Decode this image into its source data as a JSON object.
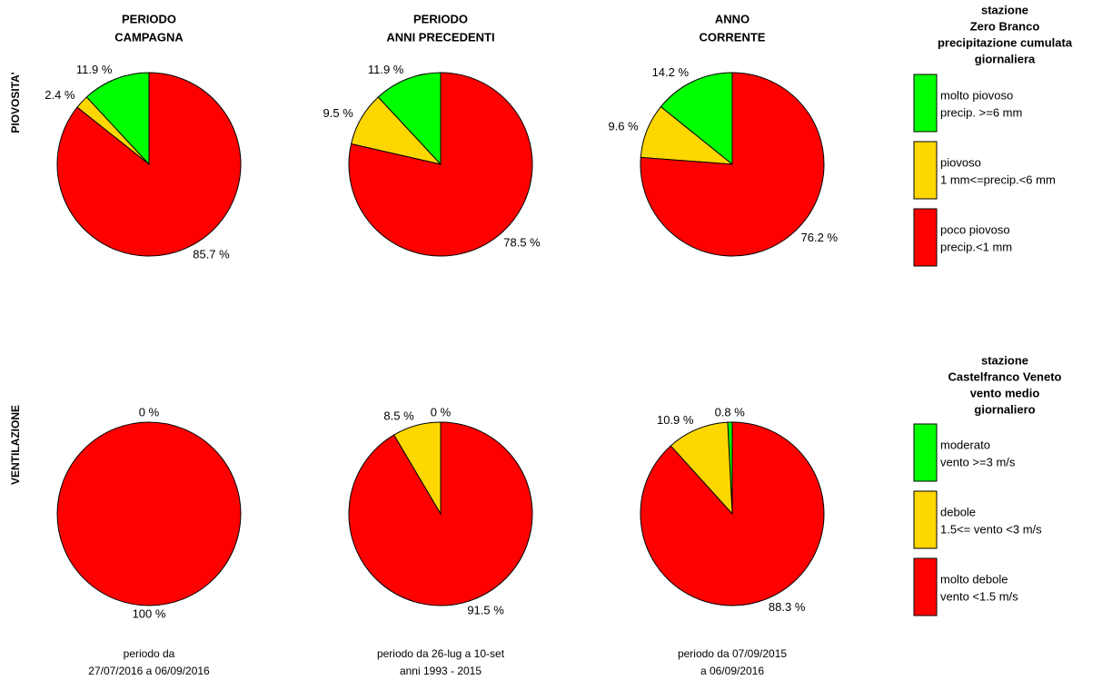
{
  "chart_data": [
    {
      "type": "pie",
      "values": [
        11.9,
        2.4,
        85.7
      ],
      "value_labels": [
        "11.9 %",
        "2.4 %",
        "85.7 %"
      ],
      "colors": [
        "#00ff00",
        "#ffd700",
        "#ff0000"
      ]
    },
    {
      "type": "pie",
      "values": [
        11.9,
        9.5,
        78.5
      ],
      "value_labels": [
        "11.9 %",
        "9.5 %",
        "78.5 %"
      ],
      "colors": [
        "#00ff00",
        "#ffd700",
        "#ff0000"
      ]
    },
    {
      "type": "pie",
      "values": [
        14.2,
        9.6,
        76.2
      ],
      "value_labels": [
        "14.2 %",
        "9.6 %",
        "76.2 %"
      ],
      "colors": [
        "#00ff00",
        "#ffd700",
        "#ff0000"
      ]
    },
    {
      "type": "pie",
      "values": [
        0,
        0,
        100
      ],
      "value_labels": [
        "0 %",
        null,
        "100 %"
      ],
      "colors": [
        "#00ff00",
        "#ffd700",
        "#ff0000"
      ]
    },
    {
      "type": "pie",
      "values": [
        0,
        8.5,
        91.5
      ],
      "value_labels": [
        "0 %",
        "8.5 %",
        "91.5 %"
      ],
      "colors": [
        "#00ff00",
        "#ffd700",
        "#ff0000"
      ]
    },
    {
      "type": "pie",
      "values": [
        0.8,
        10.9,
        88.3
      ],
      "value_labels": [
        "0.8 %",
        "10.9 %",
        "88.3 %"
      ],
      "colors": [
        "#00ff00",
        "#ffd700",
        "#ff0000"
      ]
    }
  ],
  "column_titles": [
    [
      "PERIODO",
      "CAMPAGNA"
    ],
    [
      "PERIODO",
      "ANNI PRECEDENTI"
    ],
    [
      "ANNO",
      "CORRENTE"
    ]
  ],
  "row_labels": [
    "PIOVOSITA'",
    "VENTILAZIONE"
  ],
  "footers": [
    [
      "periodo da",
      "27/07/2016  a   06/09/2016"
    ],
    [
      "periodo da  26-lug  a  10-set",
      "anni 1993 - 2015"
    ],
    [
      "periodo da  07/09/2015",
      "a  06/09/2016"
    ]
  ],
  "legends": [
    {
      "title": [
        "stazione",
        "Zero Branco",
        "precipitazione cumulata",
        "giornaliera"
      ],
      "items": [
        {
          "lines": [
            "molto piovoso",
            "precip. >=6 mm"
          ],
          "color": "#00ff00"
        },
        {
          "lines": [
            "piovoso",
            "1 mm<=precip.<6 mm"
          ],
          "color": "#ffd700"
        },
        {
          "lines": [
            "poco piovoso",
            "precip.<1 mm"
          ],
          "color": "#ff0000"
        }
      ]
    },
    {
      "title": [
        "stazione",
        "Castelfranco Veneto",
        "vento medio",
        "giornaliero"
      ],
      "items": [
        {
          "lines": [
            "moderato",
            "vento >=3 m/s"
          ],
          "color": "#00ff00"
        },
        {
          "lines": [
            "debole",
            "1.5<= vento <3 m/s"
          ],
          "color": "#ffd700"
        },
        {
          "lines": [
            "molto debole",
            "vento <1.5 m/s"
          ],
          "color": "#ff0000"
        }
      ]
    }
  ]
}
